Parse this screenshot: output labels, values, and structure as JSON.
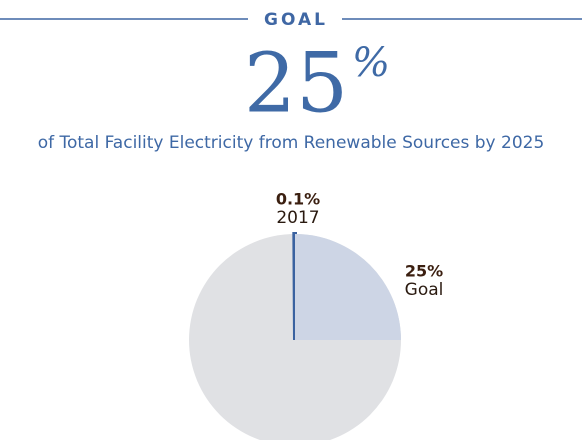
{
  "chart_data": {
    "type": "pie",
    "kicker": "GOAL",
    "headline": "25",
    "headline_unit": "%",
    "title": "of Total Facility Electricity from Renewable Sources by 2025",
    "categories": [
      "2017",
      "Goal"
    ],
    "values": [
      0.1,
      25
    ],
    "value_labels": [
      "0.1%",
      "25%"
    ],
    "colors": [
      "#3a62a0",
      "#cdd5e5"
    ],
    "remainder_color": "#e0e1e4"
  }
}
